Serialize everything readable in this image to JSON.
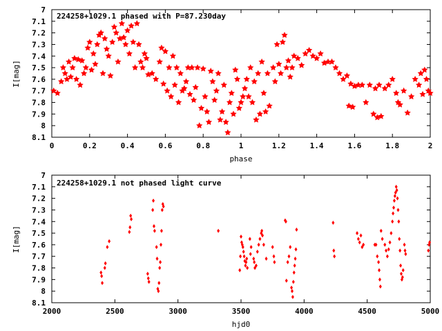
{
  "chart_data": [
    {
      "type": "scatter",
      "title": "224258+1029.1 phased with P=87.230day",
      "xlabel": "phase",
      "ylabel": "I[mag]",
      "xlim": [
        0,
        2
      ],
      "ylim": [
        8.1,
        7.0
      ],
      "y_inverted": true,
      "xticks": [
        "0",
        "0.2",
        "0.4",
        "0.6",
        "0.8",
        "1",
        "1.2",
        "1.4",
        "1.6",
        "1.8",
        "2"
      ],
      "yticks": [
        "7",
        "7.1",
        "7.2",
        "7.3",
        "7.4",
        "7.5",
        "7.6",
        "7.7",
        "7.8",
        "7.9",
        "8",
        "8.1"
      ],
      "marker": "star",
      "color": "#ff0000",
      "points": [
        [
          0.01,
          7.7
        ],
        [
          0.03,
          7.72
        ],
        [
          0.05,
          7.62
        ],
        [
          0.06,
          7.5
        ],
        [
          0.07,
          7.55
        ],
        [
          0.08,
          7.6
        ],
        [
          0.09,
          7.45
        ],
        [
          0.1,
          7.58
        ],
        [
          0.11,
          7.5
        ],
        [
          0.12,
          7.42
        ],
        [
          0.13,
          7.6
        ],
        [
          0.14,
          7.43
        ],
        [
          0.15,
          7.65
        ],
        [
          0.16,
          7.44
        ],
        [
          0.17,
          7.55
        ],
        [
          0.18,
          7.5
        ],
        [
          0.19,
          7.33
        ],
        [
          0.2,
          7.28
        ],
        [
          0.21,
          7.52
        ],
        [
          0.22,
          7.38
        ],
        [
          0.23,
          7.47
        ],
        [
          0.24,
          7.3
        ],
        [
          0.25,
          7.22
        ],
        [
          0.26,
          7.2
        ],
        [
          0.27,
          7.55
        ],
        [
          0.28,
          7.25
        ],
        [
          0.29,
          7.34
        ],
        [
          0.3,
          7.4
        ],
        [
          0.31,
          7.57
        ],
        [
          0.32,
          7.28
        ],
        [
          0.33,
          7.15
        ],
        [
          0.34,
          7.2
        ],
        [
          0.35,
          7.45
        ],
        [
          0.36,
          7.25
        ],
        [
          0.37,
          7.12
        ],
        [
          0.38,
          7.24
        ],
        [
          0.39,
          7.3
        ],
        [
          0.4,
          7.18
        ],
        [
          0.41,
          7.38
        ],
        [
          0.42,
          7.14
        ],
        [
          0.43,
          7.28
        ],
        [
          0.44,
          7.5
        ],
        [
          0.45,
          7.12
        ],
        [
          0.46,
          7.3
        ],
        [
          0.47,
          7.45
        ],
        [
          0.48,
          7.5
        ],
        [
          0.49,
          7.38
        ],
        [
          0.5,
          7.42
        ],
        [
          0.51,
          7.56
        ],
        [
          0.53,
          7.55
        ],
        [
          0.55,
          7.6
        ],
        [
          0.57,
          7.45
        ],
        [
          0.58,
          7.33
        ],
        [
          0.59,
          7.64
        ],
        [
          0.6,
          7.36
        ],
        [
          0.61,
          7.7
        ],
        [
          0.62,
          7.5
        ],
        [
          0.63,
          7.75
        ],
        [
          0.64,
          7.4
        ],
        [
          0.65,
          7.65
        ],
        [
          0.66,
          7.5
        ],
        [
          0.67,
          7.8
        ],
        [
          0.68,
          7.55
        ],
        [
          0.69,
          7.7
        ],
        [
          0.7,
          7.68
        ],
        [
          0.71,
          7.62
        ],
        [
          0.72,
          7.5
        ],
        [
          0.73,
          7.73
        ],
        [
          0.74,
          7.5
        ],
        [
          0.75,
          7.78
        ],
        [
          0.76,
          7.67
        ],
        [
          0.77,
          7.5
        ],
        [
          0.78,
          8.0
        ],
        [
          0.79,
          7.85
        ],
        [
          0.8,
          7.51
        ],
        [
          0.81,
          7.75
        ],
        [
          0.82,
          7.88
        ],
        [
          0.83,
          7.97
        ],
        [
          0.84,
          7.53
        ],
        [
          0.85,
          7.62
        ],
        [
          0.86,
          7.78
        ],
        [
          0.87,
          7.7
        ],
        [
          0.88,
          7.55
        ],
        [
          0.89,
          7.95
        ],
        [
          0.9,
          7.88
        ],
        [
          0.91,
          7.65
        ],
        [
          0.92,
          7.97
        ],
        [
          0.93,
          8.06
        ],
        [
          0.94,
          7.8
        ],
        [
          0.95,
          7.72
        ],
        [
          0.96,
          7.9
        ],
        [
          0.97,
          7.52
        ],
        [
          0.98,
          7.6
        ],
        [
          0.99,
          7.85
        ],
        [
          1.0,
          7.8
        ],
        [
          1.01,
          7.75
        ],
        [
          1.02,
          7.68
        ],
        [
          1.03,
          7.6
        ],
        [
          1.04,
          7.75
        ],
        [
          1.05,
          7.5
        ],
        [
          1.06,
          7.8
        ],
        [
          1.07,
          7.62
        ],
        [
          1.08,
          7.95
        ],
        [
          1.09,
          7.55
        ],
        [
          1.1,
          7.9
        ],
        [
          1.11,
          7.45
        ],
        [
          1.12,
          7.72
        ],
        [
          1.13,
          7.88
        ],
        [
          1.14,
          7.55
        ],
        [
          1.15,
          7.83
        ],
        [
          1.17,
          7.5
        ],
        [
          1.18,
          7.62
        ],
        [
          1.19,
          7.3
        ],
        [
          1.2,
          7.47
        ],
        [
          1.21,
          7.55
        ],
        [
          1.22,
          7.28
        ],
        [
          1.23,
          7.22
        ],
        [
          1.24,
          7.5
        ],
        [
          1.25,
          7.44
        ],
        [
          1.26,
          7.58
        ],
        [
          1.27,
          7.5
        ],
        [
          1.28,
          7.4
        ],
        [
          1.3,
          7.42
        ],
        [
          1.32,
          7.48
        ],
        [
          1.34,
          7.38
        ],
        [
          1.36,
          7.35
        ],
        [
          1.38,
          7.4
        ],
        [
          1.4,
          7.42
        ],
        [
          1.42,
          7.38
        ],
        [
          1.44,
          7.46
        ],
        [
          1.46,
          7.45
        ],
        [
          1.48,
          7.45
        ],
        [
          1.5,
          7.5
        ],
        [
          1.52,
          7.55
        ],
        [
          1.54,
          7.6
        ],
        [
          1.56,
          7.57
        ],
        [
          1.57,
          7.83
        ],
        [
          1.58,
          7.64
        ],
        [
          1.59,
          7.84
        ],
        [
          1.6,
          7.66
        ],
        [
          1.62,
          7.65
        ],
        [
          1.64,
          7.65
        ],
        [
          1.66,
          7.8
        ],
        [
          1.68,
          7.65
        ],
        [
          1.7,
          7.9
        ],
        [
          1.71,
          7.68
        ],
        [
          1.72,
          7.93
        ],
        [
          1.73,
          7.65
        ],
        [
          1.74,
          7.92
        ],
        [
          1.76,
          7.68
        ],
        [
          1.78,
          7.65
        ],
        [
          1.8,
          7.6
        ],
        [
          1.82,
          7.72
        ],
        [
          1.83,
          7.8
        ],
        [
          1.84,
          7.82
        ],
        [
          1.86,
          7.7
        ],
        [
          1.88,
          7.89
        ],
        [
          1.9,
          7.75
        ],
        [
          1.92,
          7.6
        ],
        [
          1.94,
          7.65
        ],
        [
          1.95,
          7.55
        ],
        [
          1.96,
          7.73
        ],
        [
          1.97,
          7.52
        ],
        [
          1.98,
          7.6
        ],
        [
          1.99,
          7.7
        ],
        [
          2.0,
          7.72
        ]
      ]
    },
    {
      "type": "scatter",
      "title": "224258+1029.1 not phased light curve",
      "xlabel": "hjd0",
      "ylabel": "I[mag]",
      "xlim": [
        2000,
        5000
      ],
      "ylim": [
        8.1,
        7.0
      ],
      "y_inverted": true,
      "xticks": [
        "2000",
        "2500",
        "3000",
        "3500",
        "4000",
        "4500",
        "5000"
      ],
      "yticks": [
        "7",
        "7.1",
        "7.2",
        "7.3",
        "7.4",
        "7.5",
        "7.6",
        "7.7",
        "7.8",
        "7.9",
        "8",
        "8.1"
      ],
      "marker": "diamond",
      "color": "#ff0000",
      "points": [
        [
          2390,
          7.84
        ],
        [
          2395,
          7.87
        ],
        [
          2400,
          7.93
        ],
        [
          2420,
          7.8
        ],
        [
          2425,
          7.76
        ],
        [
          2440,
          7.62
        ],
        [
          2455,
          7.57
        ],
        [
          2615,
          7.49
        ],
        [
          2620,
          7.45
        ],
        [
          2625,
          7.35
        ],
        [
          2630,
          7.38
        ],
        [
          2760,
          7.85
        ],
        [
          2765,
          7.89
        ],
        [
          2770,
          7.92
        ],
        [
          2800,
          7.3
        ],
        [
          2805,
          7.22
        ],
        [
          2810,
          7.44
        ],
        [
          2815,
          7.48
        ],
        [
          2830,
          7.62
        ],
        [
          2835,
          7.72
        ],
        [
          2840,
          7.98
        ],
        [
          2845,
          8.0
        ],
        [
          2850,
          7.93
        ],
        [
          2855,
          7.8
        ],
        [
          2860,
          7.75
        ],
        [
          2865,
          7.6
        ],
        [
          2870,
          7.48
        ],
        [
          2875,
          7.3
        ],
        [
          2880,
          7.25
        ],
        [
          2885,
          7.27
        ],
        [
          3320,
          7.48
        ],
        [
          3490,
          7.82
        ],
        [
          3495,
          7.7
        ],
        [
          3500,
          7.53
        ],
        [
          3505,
          7.58
        ],
        [
          3510,
          7.6
        ],
        [
          3515,
          7.62
        ],
        [
          3520,
          7.66
        ],
        [
          3525,
          7.7
        ],
        [
          3530,
          7.74
        ],
        [
          3535,
          7.78
        ],
        [
          3540,
          7.75
        ],
        [
          3545,
          7.72
        ],
        [
          3550,
          7.8
        ],
        [
          3570,
          7.55
        ],
        [
          3575,
          7.68
        ],
        [
          3580,
          7.62
        ],
        [
          3600,
          7.72
        ],
        [
          3605,
          7.75
        ],
        [
          3610,
          7.8
        ],
        [
          3620,
          7.78
        ],
        [
          3630,
          7.66
        ],
        [
          3640,
          7.6
        ],
        [
          3650,
          7.55
        ],
        [
          3660,
          7.5
        ],
        [
          3665,
          7.48
        ],
        [
          3670,
          7.52
        ],
        [
          3680,
          7.6
        ],
        [
          3700,
          7.72
        ],
        [
          3750,
          7.62
        ],
        [
          3760,
          7.7
        ],
        [
          3765,
          7.75
        ],
        [
          3850,
          7.39
        ],
        [
          3855,
          7.4
        ],
        [
          3860,
          7.91
        ],
        [
          3870,
          7.75
        ],
        [
          3880,
          7.7
        ],
        [
          3890,
          7.62
        ],
        [
          3900,
          7.97
        ],
        [
          3905,
          8.0
        ],
        [
          3910,
          8.05
        ],
        [
          3915,
          7.92
        ],
        [
          3920,
          7.84
        ],
        [
          3925,
          7.78
        ],
        [
          3930,
          7.72
        ],
        [
          3935,
          7.64
        ],
        [
          3940,
          7.47
        ],
        [
          4230,
          7.41
        ],
        [
          4235,
          7.65
        ],
        [
          4240,
          7.7
        ],
        [
          4420,
          7.5
        ],
        [
          4430,
          7.55
        ],
        [
          4440,
          7.58
        ],
        [
          4450,
          7.52
        ],
        [
          4460,
          7.62
        ],
        [
          4470,
          7.6
        ],
        [
          4560,
          7.6
        ],
        [
          4570,
          7.6
        ],
        [
          4580,
          7.7
        ],
        [
          4590,
          7.75
        ],
        [
          4595,
          7.82
        ],
        [
          4600,
          7.9
        ],
        [
          4605,
          7.96
        ],
        [
          4610,
          7.48
        ],
        [
          4620,
          7.55
        ],
        [
          4640,
          7.6
        ],
        [
          4650,
          7.65
        ],
        [
          4660,
          7.7
        ],
        [
          4670,
          7.64
        ],
        [
          4680,
          7.58
        ],
        [
          4690,
          7.5
        ],
        [
          4700,
          7.4
        ],
        [
          4705,
          7.33
        ],
        [
          4710,
          7.28
        ],
        [
          4715,
          7.22
        ],
        [
          4720,
          7.18
        ],
        [
          4725,
          7.15
        ],
        [
          4730,
          7.1
        ],
        [
          4735,
          7.13
        ],
        [
          4740,
          7.2
        ],
        [
          4745,
          7.3
        ],
        [
          4750,
          7.4
        ],
        [
          4755,
          7.55
        ],
        [
          4760,
          7.65
        ],
        [
          4765,
          7.78
        ],
        [
          4770,
          7.85
        ],
        [
          4775,
          7.9
        ],
        [
          4780,
          7.88
        ],
        [
          4785,
          7.82
        ],
        [
          4795,
          7.6
        ],
        [
          4800,
          7.65
        ],
        [
          4805,
          7.68
        ],
        [
          4985,
          7.65
        ],
        [
          4990,
          7.6
        ],
        [
          4995,
          7.58
        ]
      ]
    }
  ]
}
